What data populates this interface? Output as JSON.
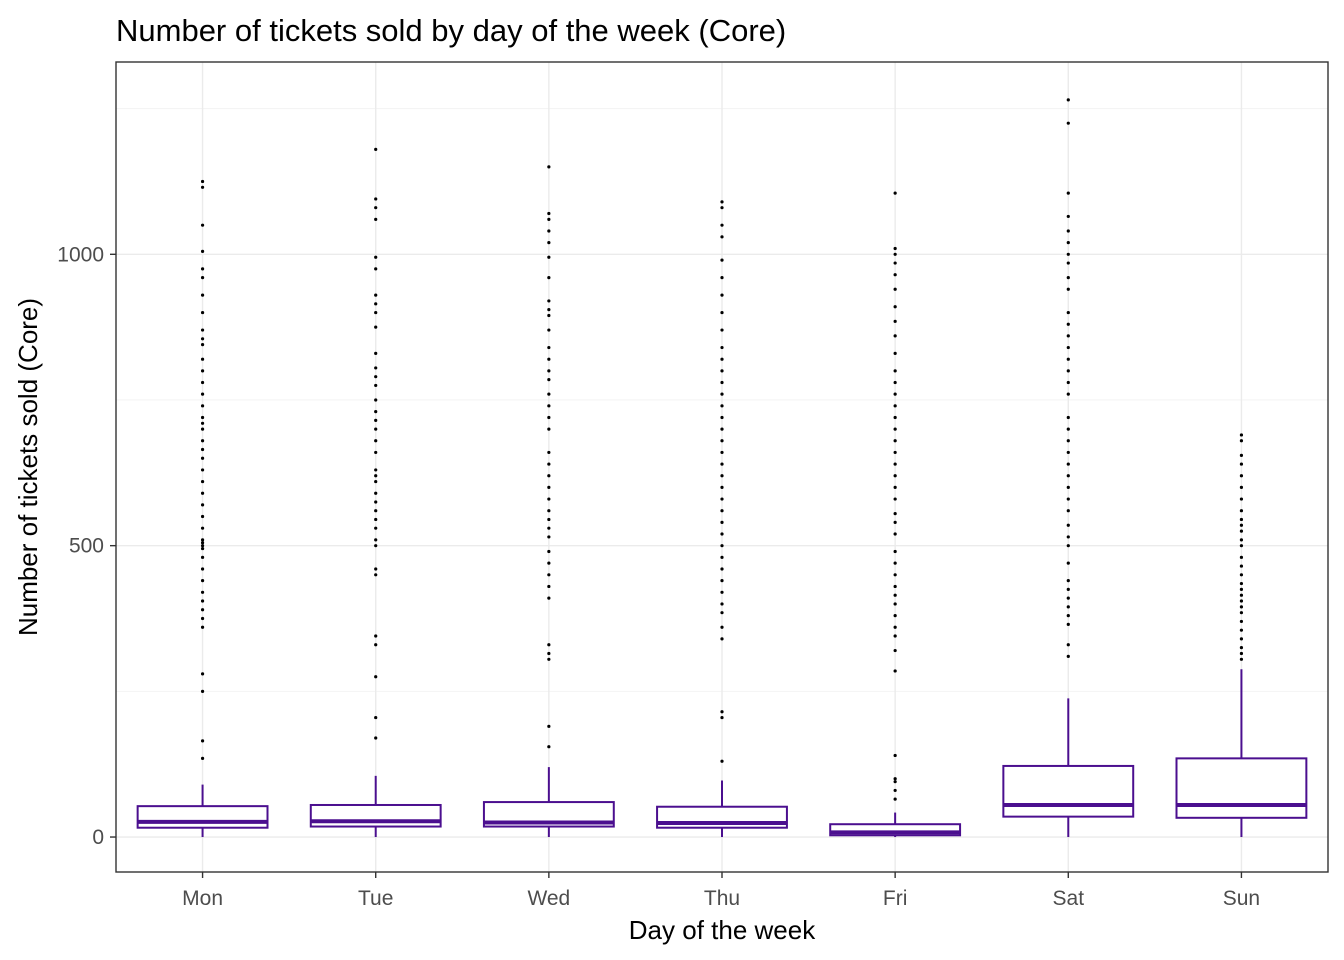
{
  "chart_data": {
    "type": "boxplot",
    "title": "Number of tickets sold by day of the week (Core)",
    "xlabel": "Day of the week",
    "ylabel": "Number of tickets sold (Core)",
    "ylim": [
      -60,
      1330
    ],
    "y_ticks": [
      0,
      500,
      1000
    ],
    "y_tick_labels": [
      "0",
      "500",
      "1000"
    ],
    "grid": true,
    "color": "#4b0f8f",
    "outlier_color": "#000000",
    "categories": [
      "Mon",
      "Tue",
      "Wed",
      "Thu",
      "Fri",
      "Sat",
      "Sun"
    ],
    "boxes": [
      {
        "category": "Mon",
        "whisker_low": 0,
        "q1": 16,
        "median": 26,
        "q3": 53,
        "whisker_high": 90,
        "outliers": [
          135,
          165,
          250,
          280,
          360,
          375,
          390,
          405,
          420,
          440,
          460,
          480,
          495,
          500,
          505,
          510,
          530,
          550,
          570,
          590,
          610,
          630,
          650,
          665,
          680,
          700,
          710,
          720,
          740,
          760,
          780,
          800,
          820,
          845,
          855,
          870,
          900,
          930,
          960,
          975,
          1005,
          1050,
          1115,
          1125
        ]
      },
      {
        "category": "Tue",
        "whisker_low": 0,
        "q1": 18,
        "median": 27,
        "q3": 55,
        "whisker_high": 105,
        "outliers": [
          170,
          205,
          275,
          330,
          345,
          450,
          460,
          500,
          510,
          530,
          545,
          560,
          575,
          590,
          610,
          620,
          630,
          660,
          680,
          700,
          715,
          730,
          750,
          775,
          790,
          805,
          830,
          875,
          900,
          915,
          930,
          975,
          995,
          1060,
          1080,
          1095,
          1180
        ]
      },
      {
        "category": "Wed",
        "whisker_low": 0,
        "q1": 18,
        "median": 25,
        "q3": 60,
        "whisker_high": 120,
        "outliers": [
          155,
          190,
          305,
          315,
          330,
          410,
          430,
          450,
          470,
          490,
          515,
          530,
          545,
          560,
          580,
          600,
          620,
          640,
          660,
          700,
          720,
          740,
          760,
          785,
          800,
          820,
          840,
          870,
          895,
          905,
          920,
          960,
          995,
          1020,
          1040,
          1060,
          1070,
          1150
        ]
      },
      {
        "category": "Thu",
        "whisker_low": 0,
        "q1": 16,
        "median": 24,
        "q3": 52,
        "whisker_high": 97,
        "outliers": [
          130,
          205,
          215,
          340,
          360,
          385,
          400,
          420,
          440,
          460,
          480,
          500,
          520,
          540,
          560,
          580,
          600,
          620,
          640,
          660,
          680,
          700,
          720,
          740,
          760,
          780,
          800,
          820,
          840,
          870,
          900,
          930,
          960,
          990,
          1030,
          1050,
          1080,
          1090
        ]
      },
      {
        "category": "Fri",
        "whisker_low": 0,
        "q1": 3,
        "median": 8,
        "q3": 22,
        "whisker_high": 42,
        "outliers": [
          65,
          80,
          95,
          100,
          140,
          285,
          320,
          345,
          360,
          380,
          400,
          415,
          430,
          450,
          470,
          490,
          520,
          540,
          555,
          580,
          600,
          620,
          640,
          660,
          680,
          700,
          720,
          740,
          760,
          780,
          800,
          830,
          860,
          885,
          910,
          940,
          965,
          985,
          1000,
          1010,
          1105
        ]
      },
      {
        "category": "Sat",
        "whisker_low": 0,
        "q1": 35,
        "median": 55,
        "q3": 122,
        "whisker_high": 238,
        "outliers": [
          310,
          330,
          365,
          380,
          395,
          410,
          425,
          440,
          470,
          500,
          515,
          535,
          560,
          580,
          600,
          620,
          640,
          660,
          680,
          700,
          720,
          760,
          780,
          800,
          820,
          840,
          860,
          880,
          900,
          940,
          960,
          985,
          1000,
          1020,
          1040,
          1065,
          1105,
          1225,
          1265
        ]
      },
      {
        "category": "Sun",
        "whisker_low": 0,
        "q1": 33,
        "median": 55,
        "q3": 135,
        "whisker_high": 288,
        "outliers": [
          305,
          315,
          325,
          340,
          355,
          370,
          385,
          395,
          405,
          415,
          425,
          435,
          450,
          465,
          480,
          500,
          510,
          525,
          535,
          545,
          560,
          580,
          600,
          620,
          640,
          655,
          680,
          690
        ]
      }
    ]
  }
}
